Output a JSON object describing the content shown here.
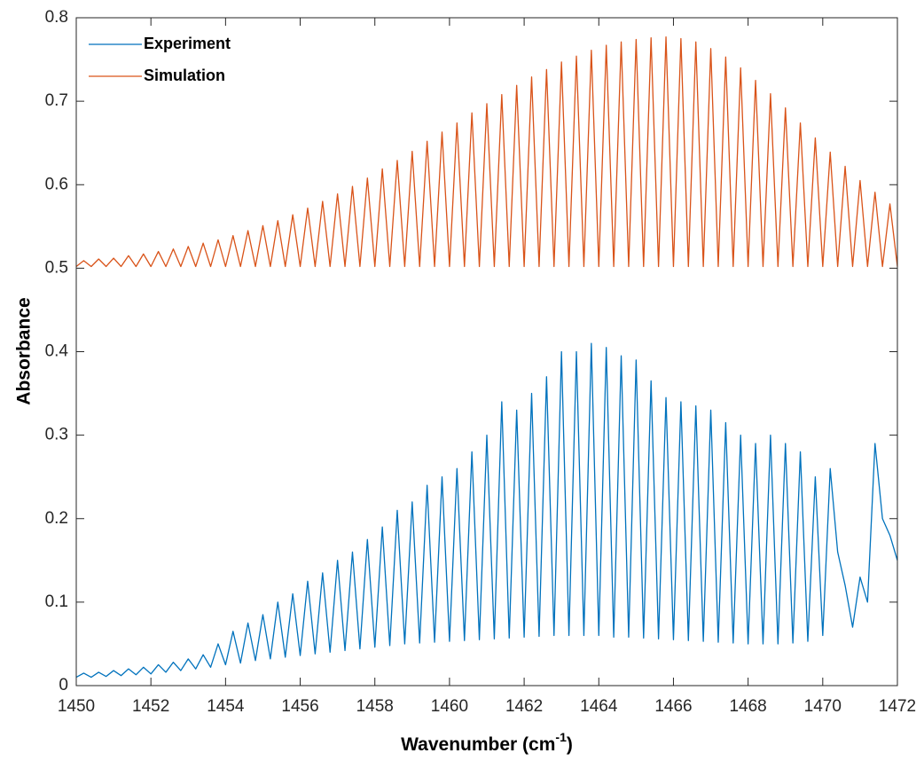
{
  "chart_data": {
    "type": "line",
    "ylabel": "Absorbance",
    "xlabel": [
      "Wavenumber (cm",
      "-1",
      ")"
    ],
    "xlim": [
      1450,
      1472
    ],
    "xticks": [
      1450,
      1452,
      1454,
      1456,
      1458,
      1460,
      1462,
      1464,
      1466,
      1468,
      1470,
      1472
    ],
    "ylim": [
      0,
      0.8
    ],
    "yticks": [
      0,
      0.1,
      0.2,
      0.3,
      0.4,
      0.5,
      0.6,
      0.7,
      0.8
    ],
    "legend": "top-left",
    "x": [
      1450,
      1450.2,
      1450.4,
      1450.6,
      1450.8,
      1451,
      1451.2,
      1451.4,
      1451.6,
      1451.8,
      1452,
      1452.2,
      1452.4,
      1452.6,
      1452.8,
      1453,
      1453.2,
      1453.4,
      1453.6,
      1453.8,
      1454,
      1454.2,
      1454.4,
      1454.6,
      1454.8,
      1455,
      1455.2,
      1455.4,
      1455.6,
      1455.8,
      1456,
      1456.2,
      1456.4,
      1456.6,
      1456.8,
      1457,
      1457.2,
      1457.4,
      1457.6,
      1457.8,
      1458,
      1458.2,
      1458.4,
      1458.6,
      1458.8,
      1459,
      1459.2,
      1459.4,
      1459.6,
      1459.8,
      1460,
      1460.2,
      1460.4,
      1460.6,
      1460.8,
      1461,
      1461.2,
      1461.4,
      1461.6,
      1461.8,
      1462,
      1462.2,
      1462.4,
      1462.6,
      1462.8,
      1463,
      1463.2,
      1463.4,
      1463.6,
      1463.8,
      1464,
      1464.2,
      1464.4,
      1464.6,
      1464.8,
      1465,
      1465.2,
      1465.4,
      1465.6,
      1465.8,
      1466,
      1466.2,
      1466.4,
      1466.6,
      1466.8,
      1467,
      1467.2,
      1467.4,
      1467.6,
      1467.8,
      1468,
      1468.2,
      1468.4,
      1468.6,
      1468.8,
      1469,
      1469.2,
      1469.4,
      1469.6,
      1469.8,
      1470,
      1470.2,
      1470.4,
      1470.6,
      1470.8,
      1471,
      1471.2,
      1471.4,
      1471.6,
      1471.8,
      1472
    ],
    "series": [
      {
        "name": "Experiment",
        "color": "#0072BD",
        "values": [
          0.01,
          0.015,
          0.01,
          0.016,
          0.011,
          0.018,
          0.012,
          0.02,
          0.013,
          0.022,
          0.014,
          0.025,
          0.016,
          0.028,
          0.018,
          0.032,
          0.02,
          0.037,
          0.022,
          0.05,
          0.025,
          0.065,
          0.027,
          0.075,
          0.03,
          0.085,
          0.032,
          0.1,
          0.034,
          0.11,
          0.036,
          0.125,
          0.038,
          0.135,
          0.04,
          0.15,
          0.042,
          0.16,
          0.044,
          0.175,
          0.046,
          0.19,
          0.048,
          0.21,
          0.05,
          0.22,
          0.051,
          0.24,
          0.052,
          0.25,
          0.053,
          0.26,
          0.054,
          0.28,
          0.055,
          0.3,
          0.056,
          0.34,
          0.057,
          0.33,
          0.058,
          0.35,
          0.059,
          0.37,
          0.06,
          0.4,
          0.06,
          0.4,
          0.06,
          0.41,
          0.06,
          0.405,
          0.058,
          0.395,
          0.058,
          0.39,
          0.057,
          0.365,
          0.056,
          0.345,
          0.055,
          0.34,
          0.054,
          0.335,
          0.053,
          0.33,
          0.052,
          0.315,
          0.051,
          0.3,
          0.05,
          0.29,
          0.05,
          0.3,
          0.05,
          0.29,
          0.051,
          0.28,
          0.053,
          0.25,
          0.06,
          0.26,
          0.16,
          0.12,
          0.07,
          0.13,
          0.1,
          0.29,
          0.2,
          0.18,
          0.15
        ]
      },
      {
        "name": "Simulation",
        "color": "#D95319",
        "values": [
          0.502,
          0.509,
          0.502,
          0.511,
          0.502,
          0.512,
          0.502,
          0.515,
          0.502,
          0.517,
          0.502,
          0.52,
          0.502,
          0.523,
          0.502,
          0.526,
          0.502,
          0.53,
          0.502,
          0.534,
          0.502,
          0.539,
          0.502,
          0.545,
          0.502,
          0.551,
          0.502,
          0.557,
          0.502,
          0.564,
          0.502,
          0.572,
          0.502,
          0.58,
          0.502,
          0.589,
          0.502,
          0.598,
          0.502,
          0.608,
          0.502,
          0.619,
          0.502,
          0.629,
          0.502,
          0.64,
          0.502,
          0.652,
          0.502,
          0.663,
          0.502,
          0.674,
          0.502,
          0.686,
          0.502,
          0.697,
          0.502,
          0.708,
          0.502,
          0.719,
          0.502,
          0.729,
          0.502,
          0.738,
          0.502,
          0.747,
          0.502,
          0.754,
          0.502,
          0.761,
          0.502,
          0.767,
          0.502,
          0.771,
          0.502,
          0.774,
          0.502,
          0.776,
          0.502,
          0.777,
          0.502,
          0.775,
          0.502,
          0.771,
          0.502,
          0.763,
          0.502,
          0.753,
          0.502,
          0.74,
          0.502,
          0.725,
          0.502,
          0.709,
          0.502,
          0.692,
          0.502,
          0.674,
          0.502,
          0.656,
          0.502,
          0.639,
          0.502,
          0.622,
          0.502,
          0.605,
          0.502,
          0.591,
          0.502,
          0.577,
          0.502
        ]
      }
    ]
  }
}
